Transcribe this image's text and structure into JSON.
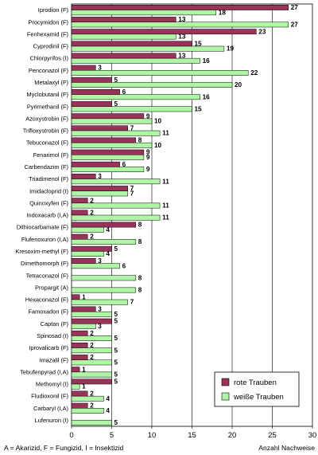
{
  "chart_data": {
    "type": "bar",
    "orientation": "horizontal",
    "categories": [
      "Iprodion  (F)",
      "Procymidon  (F)",
      "Fenhexamid  (F)",
      "Cyprodinil  (F)",
      "Chlorpyrifos  (I)",
      "Penconazol  (F)",
      "Metalaxyl  (F)",
      "Myclobutanil  (F)",
      "Pyrimethanil  (F)",
      "Azoxystrobin  (F)",
      "Trifloxystrobin  (F)",
      "Tebuconazol  (F)",
      "Fenarimol  (F)",
      "Carbendazim  (F)",
      "Triadimenol  (F)",
      "Imidacloprid  (I)",
      "Quinoxyfen  (F)",
      "Indoxacarb  (I,A)",
      "Dithiocarbamate  (F)",
      "Flufenoxuron  (I,A)",
      "Kresoxim-methyl  (F)",
      "Dimethomorph  (F)",
      "Tetraconazol  (F)",
      "Propargit  (A)",
      "Hexaconazol  (F)",
      "Famoxadon  (F)",
      "Captan  (F)",
      "Spinosad  (I)",
      "Iprovalicarb  (F)",
      "Imazalil  (F)",
      "Tebufenpyrad  (I,A)",
      "Methomyl  (I)",
      "Fludioxonil  (F)",
      "Carbaryl  (I,A)",
      "Lufenuron  (I)"
    ],
    "series": [
      {
        "name": "rote Trauben",
        "color": "#99335a",
        "values": [
          27,
          13,
          23,
          15,
          13,
          3,
          5,
          6,
          5,
          9,
          7,
          8,
          9,
          6,
          3,
          7,
          2,
          2,
          8,
          2,
          5,
          3,
          0,
          0,
          1,
          3,
          5,
          2,
          2,
          2,
          1,
          5,
          2,
          2,
          0
        ]
      },
      {
        "name": "weiße Trauben",
        "color": "#b0f5a6",
        "values": [
          18,
          27,
          13,
          19,
          16,
          22,
          20,
          16,
          15,
          10,
          11,
          10,
          9,
          9,
          11,
          7,
          11,
          11,
          4,
          8,
          4,
          6,
          8,
          8,
          7,
          5,
          3,
          5,
          5,
          5,
          5,
          1,
          4,
          4,
          5
        ]
      }
    ],
    "xlim": [
      0,
      30
    ],
    "xticks": [
      0,
      5,
      10,
      15,
      20,
      25,
      30
    ],
    "xlabel": "Anzahl Nachweise",
    "grid": "vertical",
    "legend": "bottom-right"
  },
  "footnote": "A = Akarizid,  F = Fungizid,  I = Insektizid"
}
